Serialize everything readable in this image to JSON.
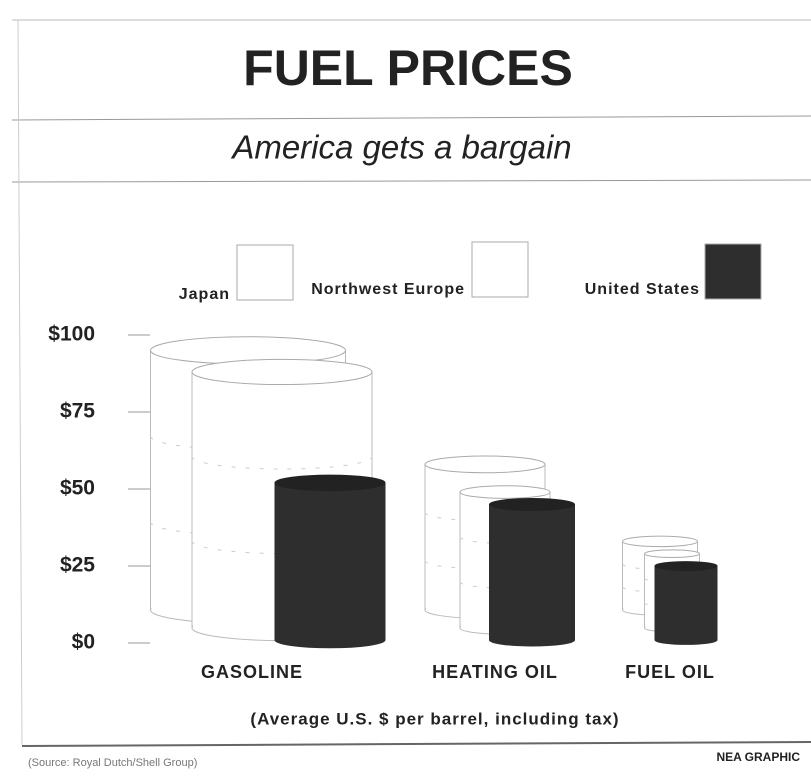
{
  "chart_data": {
    "type": "barrel",
    "title": "FUEL PRICES",
    "subtitle": "America gets a bargain",
    "axis_note": "(Average U.S. $ per barrel, including tax)",
    "source": "(Source: Royal Dutch/Shell Group)",
    "credit": "NEA GRAPHIC",
    "categories": [
      "GASOLINE",
      "HEATING OIL",
      "FUEL OIL"
    ],
    "series": [
      {
        "name": "Japan",
        "color": "#ffffff",
        "values": [
          95,
          58,
          33
        ]
      },
      {
        "name": "Northwest Europe",
        "color": "#ffffff",
        "values": [
          88,
          49,
          29
        ]
      },
      {
        "name": "United States",
        "color": "#2e2e2e",
        "values": [
          52,
          45,
          25
        ]
      }
    ],
    "ylim": [
      0,
      100
    ],
    "yticks": [
      {
        "value": 0,
        "label": "$0"
      },
      {
        "value": 25,
        "label": "$25"
      },
      {
        "value": 50,
        "label": "$50"
      },
      {
        "value": 75,
        "label": "$75"
      },
      {
        "value": 100,
        "label": "$100"
      }
    ]
  }
}
